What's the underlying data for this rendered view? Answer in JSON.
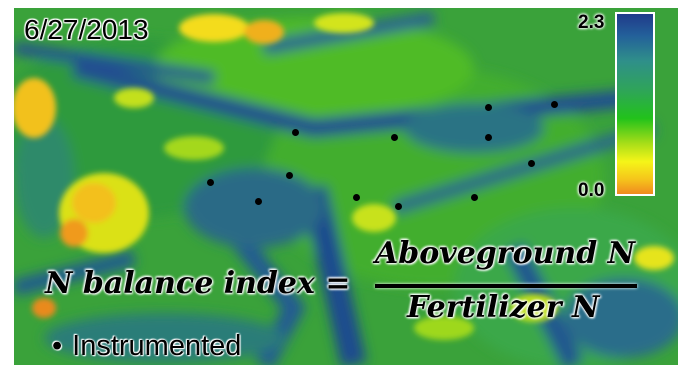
{
  "map": {
    "date_label": "6/27/2013",
    "colorbar": {
      "max_label": "2.3",
      "min_label": "0.0",
      "colors": [
        "#203a8a",
        "#23609a",
        "#2f8f8a",
        "#2fa45a",
        "#22c21b",
        "#a8de18",
        "#f5f518",
        "#f5c41b",
        "#f08a1f"
      ]
    },
    "equation": {
      "lhs": "N balance index =",
      "numerator": "Aboveground N",
      "denominator": "Fertilizer N"
    },
    "legend": {
      "bullet": "•",
      "label": "Instrumented"
    }
  }
}
